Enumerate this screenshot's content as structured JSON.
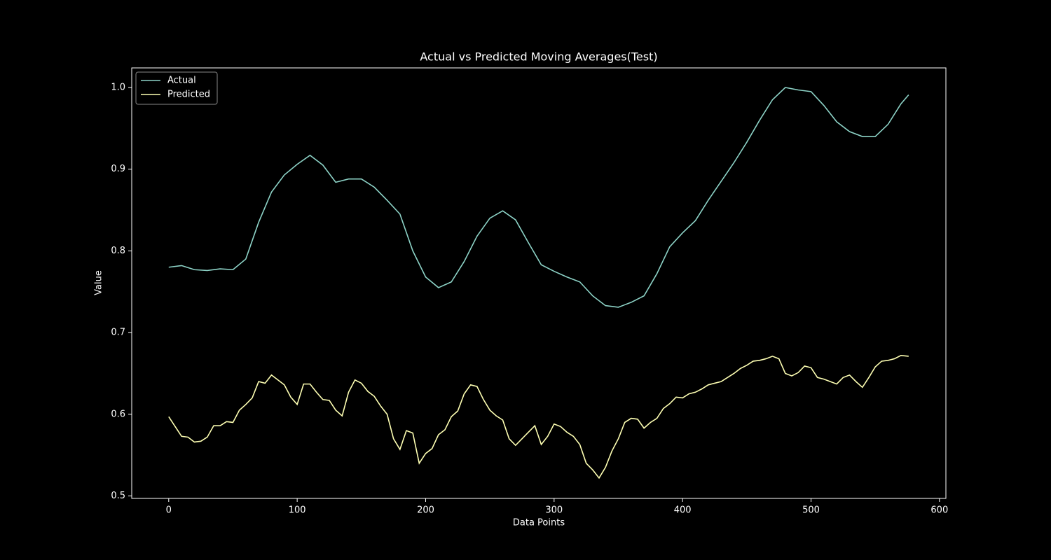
{
  "chart_data": {
    "type": "line",
    "title": "Actual vs Predicted Moving Averages(Test)",
    "x_label": "Data Points",
    "y_label": "Value",
    "xlim": [
      -28.8,
      605
    ],
    "ylim": [
      0.497,
      1.024
    ],
    "xticks": [
      0,
      100,
      200,
      300,
      400,
      500,
      600
    ],
    "yticks": [
      0.5,
      0.6,
      0.7,
      0.8,
      0.9,
      {
        "value": 1,
        "label": "1.0"
      }
    ],
    "legend": "upper left",
    "series": [
      {
        "name": "Actual",
        "color": "#8dd3c7",
        "x": [
          0,
          10,
          20,
          30,
          40,
          50,
          60,
          70,
          80,
          90,
          100,
          110,
          120,
          130,
          140,
          150,
          160,
          170,
          180,
          190,
          200,
          210,
          220,
          230,
          240,
          250,
          260,
          270,
          280,
          290,
          300,
          310,
          320,
          330,
          340,
          350,
          360,
          370,
          380,
          390,
          400,
          410,
          420,
          430,
          440,
          450,
          460,
          470,
          480,
          490,
          500,
          510,
          520,
          530,
          540,
          550,
          560,
          570,
          576
        ],
        "values": [
          0.78,
          0.782,
          0.777,
          0.776,
          0.778,
          0.777,
          0.79,
          0.835,
          0.872,
          0.893,
          0.906,
          0.917,
          0.905,
          0.884,
          0.888,
          0.888,
          0.878,
          0.862,
          0.845,
          0.8,
          0.768,
          0.755,
          0.762,
          0.787,
          0.818,
          0.84,
          0.849,
          0.838,
          0.81,
          0.783,
          0.775,
          0.768,
          0.762,
          0.745,
          0.733,
          0.731,
          0.737,
          0.745,
          0.772,
          0.805,
          0.822,
          0.837,
          0.862,
          0.885,
          0.908,
          0.933,
          0.96,
          0.985,
          1.0,
          0.997,
          0.995,
          0.978,
          0.958,
          0.946,
          0.94,
          0.94,
          0.955,
          0.98,
          0.991
        ]
      },
      {
        "name": "Predicted",
        "color": "#feffb3",
        "x": [
          0,
          5,
          10,
          15,
          20,
          25,
          30,
          35,
          40,
          45,
          50,
          55,
          60,
          65,
          70,
          75,
          80,
          85,
          90,
          95,
          100,
          105,
          110,
          115,
          120,
          125,
          130,
          135,
          140,
          145,
          150,
          155,
          160,
          165,
          170,
          175,
          180,
          185,
          190,
          195,
          200,
          205,
          210,
          215,
          220,
          225,
          230,
          235,
          240,
          245,
          250,
          255,
          260,
          265,
          270,
          275,
          280,
          285,
          290,
          295,
          300,
          305,
          310,
          315,
          320,
          325,
          330,
          335,
          340,
          345,
          350,
          355,
          360,
          365,
          370,
          375,
          380,
          385,
          390,
          395,
          400,
          405,
          410,
          415,
          420,
          425,
          430,
          435,
          440,
          445,
          450,
          455,
          460,
          465,
          470,
          475,
          480,
          485,
          490,
          495,
          500,
          505,
          510,
          515,
          520,
          525,
          530,
          535,
          540,
          545,
          550,
          555,
          560,
          565,
          570,
          576
        ],
        "values": [
          0.597,
          0.585,
          0.573,
          0.572,
          0.566,
          0.567,
          0.572,
          0.586,
          0.586,
          0.591,
          0.59,
          0.605,
          0.612,
          0.62,
          0.64,
          0.638,
          0.648,
          0.642,
          0.636,
          0.621,
          0.612,
          0.637,
          0.637,
          0.627,
          0.618,
          0.617,
          0.605,
          0.598,
          0.627,
          0.642,
          0.638,
          0.628,
          0.622,
          0.61,
          0.6,
          0.57,
          0.557,
          0.58,
          0.577,
          0.54,
          0.552,
          0.558,
          0.575,
          0.581,
          0.597,
          0.604,
          0.625,
          0.636,
          0.634,
          0.618,
          0.605,
          0.598,
          0.593,
          0.57,
          0.562,
          0.57,
          0.578,
          0.586,
          0.563,
          0.573,
          0.588,
          0.585,
          0.578,
          0.573,
          0.563,
          0.54,
          0.532,
          0.522,
          0.535,
          0.555,
          0.57,
          0.59,
          0.595,
          0.594,
          0.583,
          0.59,
          0.595,
          0.607,
          0.613,
          0.621,
          0.62,
          0.625,
          0.627,
          0.631,
          0.636,
          0.638,
          0.64,
          0.645,
          0.65,
          0.656,
          0.66,
          0.665,
          0.666,
          0.668,
          0.671,
          0.668,
          0.65,
          0.647,
          0.651,
          0.659,
          0.657,
          0.645,
          0.643,
          0.64,
          0.637,
          0.645,
          0.648,
          0.64,
          0.633,
          0.645,
          0.658,
          0.665,
          0.666,
          0.668,
          0.672,
          0.671
        ]
      }
    ]
  }
}
